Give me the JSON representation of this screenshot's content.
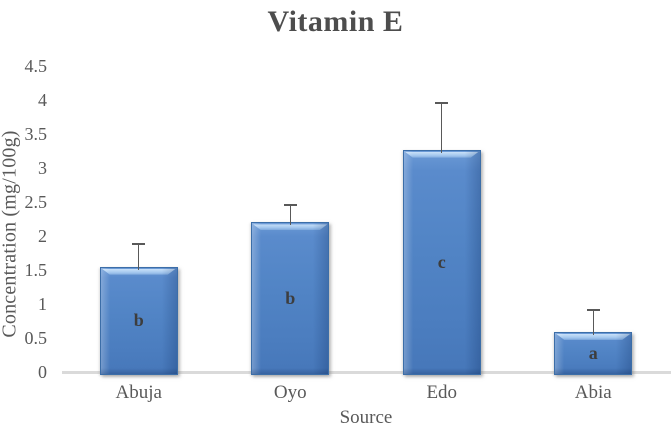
{
  "chart_data": {
    "type": "bar",
    "title": "Vitamin E",
    "xlabel": "Source",
    "ylabel": "Concentration (mg/100g)",
    "categories": [
      "Abuja",
      "Oyo",
      "Edo",
      "Abia"
    ],
    "values": [
      1.55,
      2.2,
      3.27,
      0.59
    ],
    "error_bars_upper": [
      0.33,
      0.25,
      0.69,
      0.32
    ],
    "bar_significance_labels": [
      "b",
      "b",
      "c",
      "a"
    ],
    "yticks": [
      "0",
      "0.5",
      "1",
      "1.5",
      "2",
      "2.5",
      "3",
      "3.5",
      "4",
      "4.5"
    ],
    "ylim": [
      0,
      4.5
    ],
    "grid": false,
    "legend_position": "none",
    "colors": {
      "bar_fill": "#4f83c4",
      "bar_bevel_light": "#a6c9ef",
      "bar_border": "#3c6ea8",
      "error_bar": "#595959",
      "axis_line": "#dadada",
      "axis_text": "#595959",
      "title_text": "#4d4d4d",
      "bar_label_text": "#3d3d3d"
    }
  }
}
